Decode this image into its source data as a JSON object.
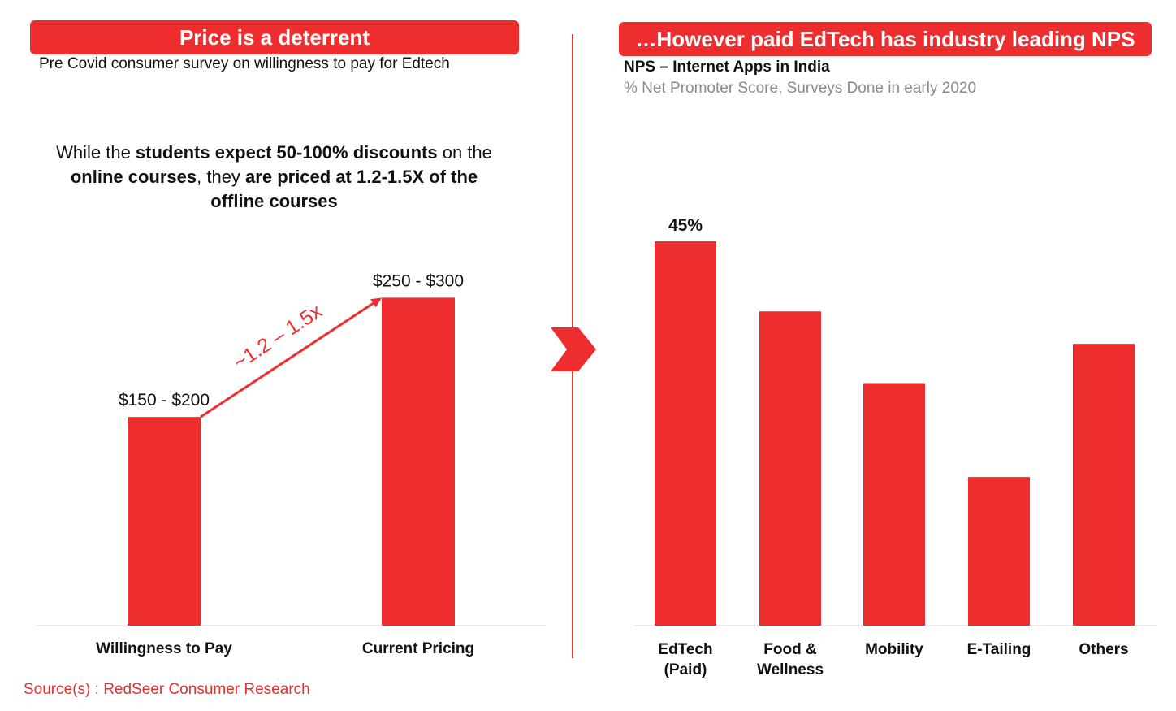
{
  "left_panel": {
    "banner": "Price is a deterrent",
    "subtitle": "Pre Covid consumer survey on willingness to pay for Edtech",
    "callout": {
      "p1": "While the ",
      "b1": "students expect 50-100% discounts",
      "p2": " on the ",
      "b2": "online courses",
      "p3": ", they ",
      "b3": "are priced at 1.2-1.5X of the offline courses"
    },
    "arrow_label": "~1.2 – 1.5x"
  },
  "right_panel": {
    "banner": "…However paid EdTech has industry leading NPS",
    "subtitle": "NPS – Internet Apps in India",
    "subtitle2": "% Net Promoter Score, Surveys Done in early 2020"
  },
  "source": "Source(s) : RedSeer Consumer Research",
  "colors": {
    "accent": "#ee2e2e",
    "bar": "#ee2e2e",
    "axis": "#d9d9d9",
    "muted": "#8a8a8a"
  },
  "chart_data": [
    {
      "type": "bar",
      "categories": [
        "Willingness to Pay",
        "Current Pricing"
      ],
      "values": [
        175,
        275
      ],
      "data_labels": [
        "$150 - $200",
        "$250 - $300"
      ],
      "ylim": [
        0,
        310
      ],
      "grid": false
    },
    {
      "type": "bar",
      "categories": [
        "EdTech (Paid)",
        "Food & Wellness",
        "Mobility",
        "E-Tailing",
        "Others"
      ],
      "values": [
        45,
        36.8,
        28.4,
        17.4,
        33
      ],
      "data_labels": [
        "45%",
        "",
        "",
        "",
        ""
      ],
      "ylim": [
        0,
        47
      ],
      "grid": false
    }
  ]
}
